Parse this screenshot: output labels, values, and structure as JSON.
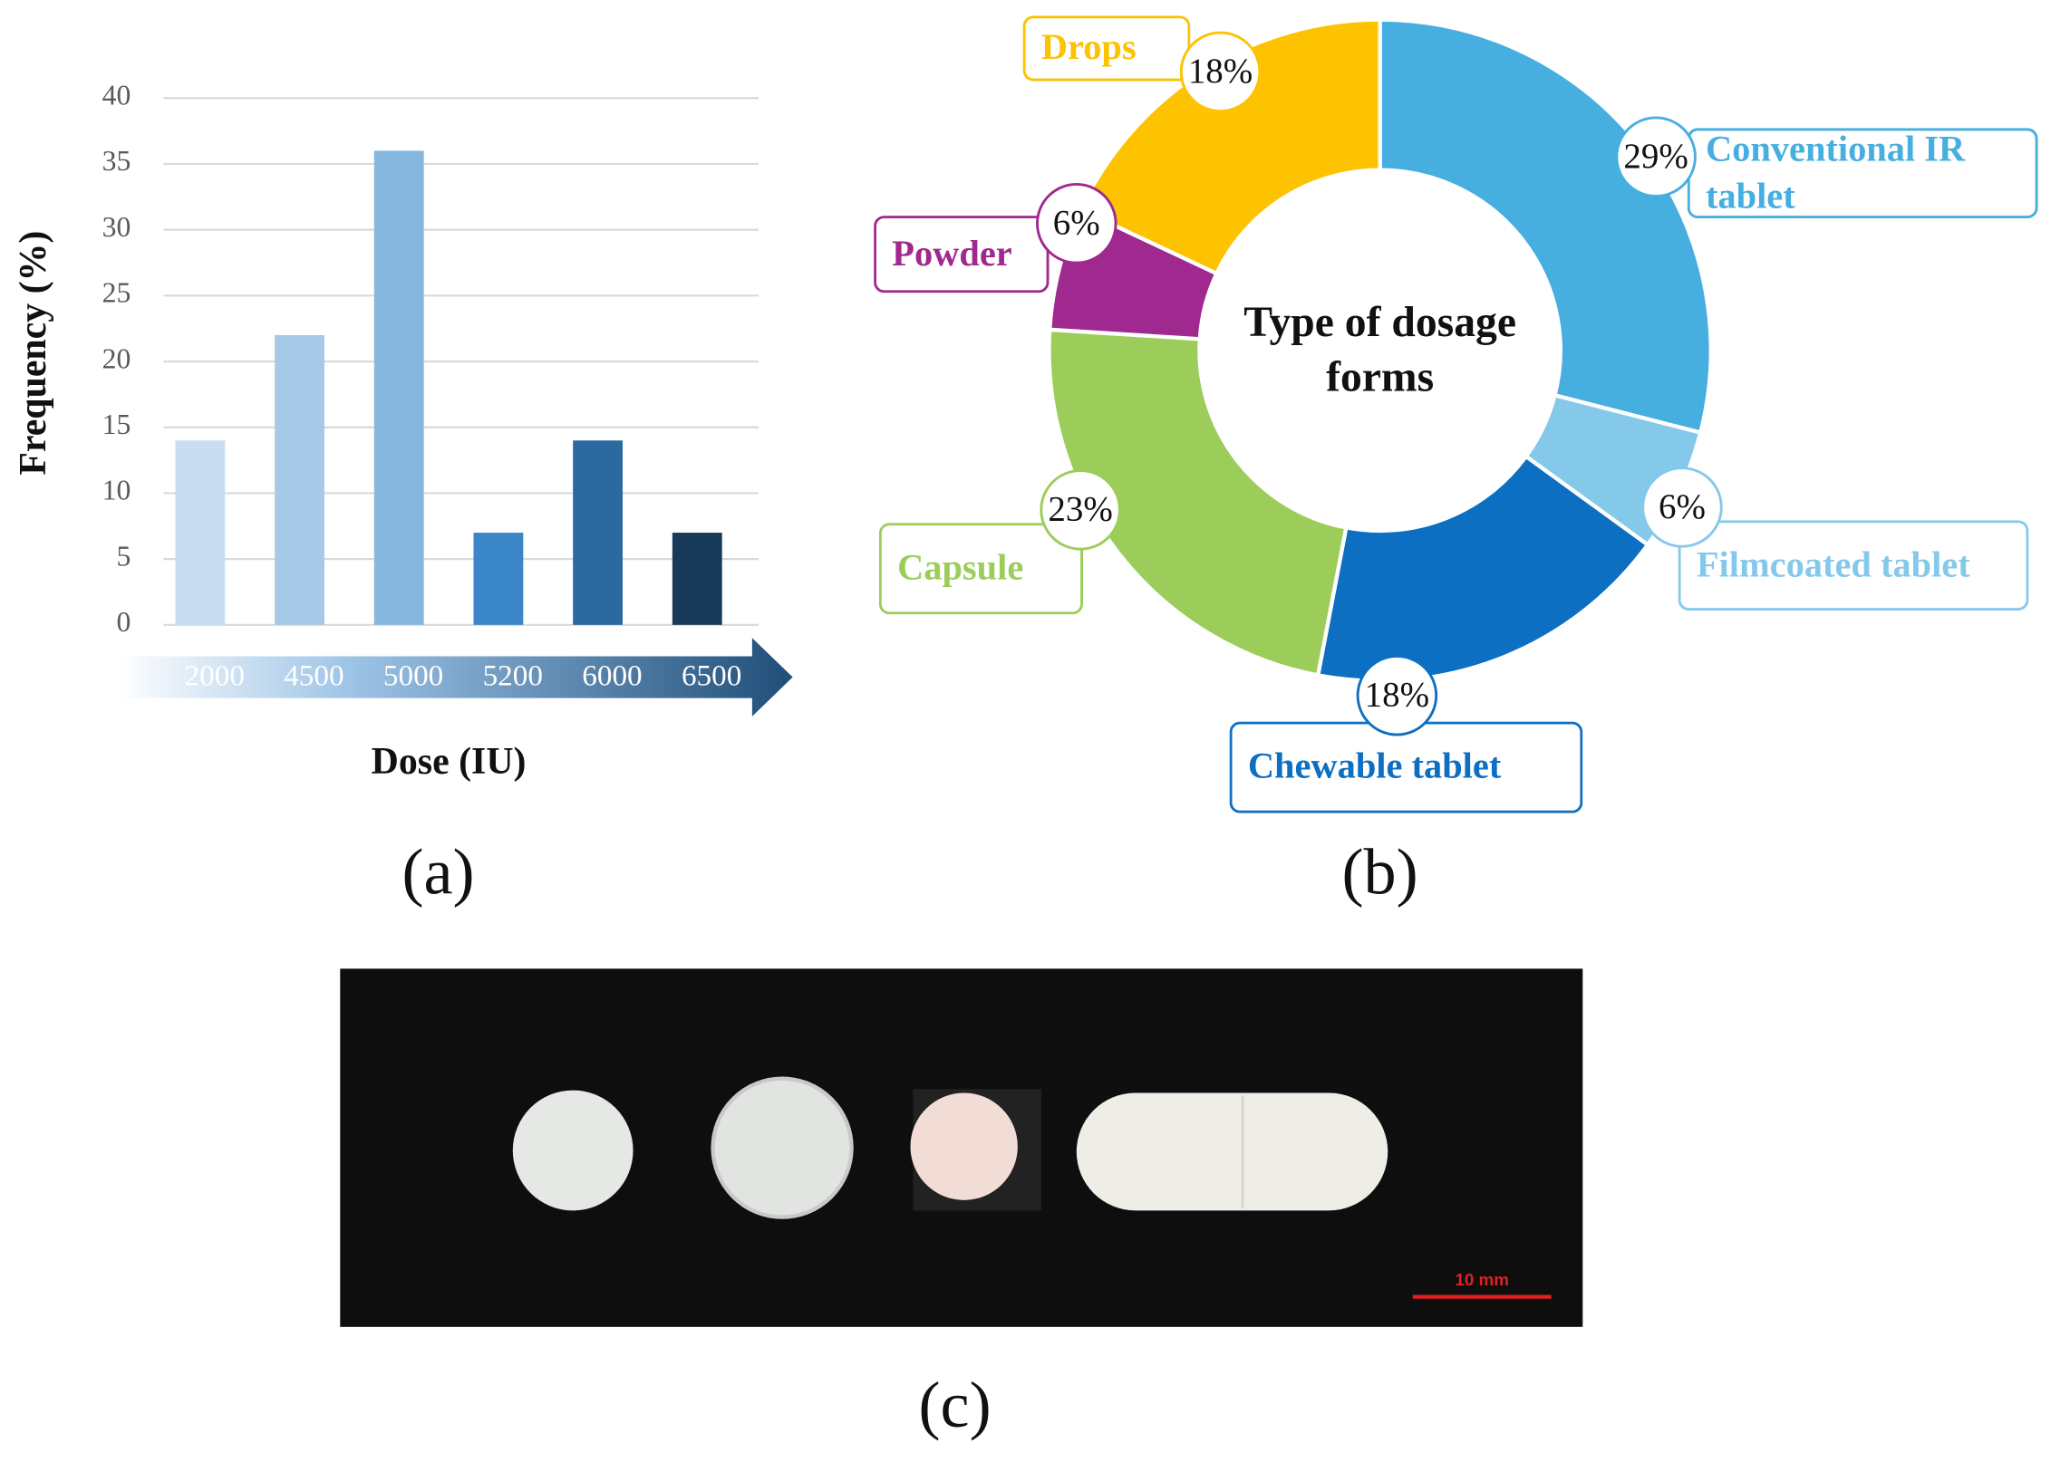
{
  "chart_data": [
    {
      "type": "bar",
      "panel_label": "(a)",
      "xlabel": "Dose (IU)",
      "ylabel": "Frequency (%)",
      "categories": [
        "2000",
        "4500",
        "5000",
        "5200",
        "6000",
        "6500"
      ],
      "values": [
        14,
        22,
        36,
        7,
        14,
        7
      ],
      "colors": [
        "#c9ddf0",
        "#a6c9e8",
        "#86b7df",
        "#3a86c8",
        "#2b6aa0",
        "#173a58"
      ],
      "ylim": [
        0,
        40
      ],
      "yticks": [
        0,
        5,
        10,
        15,
        20,
        25,
        30,
        35,
        40
      ],
      "grid": true
    },
    {
      "type": "pie",
      "panel_label": "(b)",
      "center_label": "Type of dosage forms",
      "categories": [
        "Conventional IR tablet",
        "Filmcoated tablet",
        "Chewable tablet",
        "Capsule",
        "Powder",
        "Drops"
      ],
      "values": [
        29,
        6,
        18,
        23,
        6,
        18
      ],
      "value_labels": [
        "29%",
        "6%",
        "18%",
        "23%",
        "6%",
        "18%"
      ],
      "colors": [
        "#47aee0",
        "#85c9ea",
        "#0d6fc2",
        "#9ccd5a",
        "#a0298f",
        "#fdc200"
      ]
    }
  ],
  "photo": {
    "scale_bar_label": "10 mm",
    "panel_label": "(c)"
  }
}
